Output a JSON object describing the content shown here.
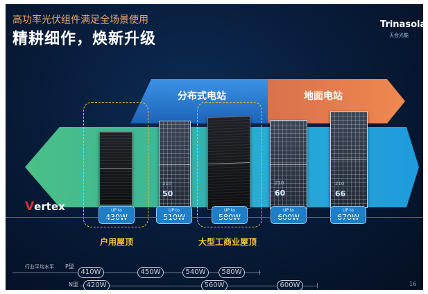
{
  "header": {
    "subtitle": "高功率光伏组件满足全场景使用",
    "title": "精耕细作，焕新升级"
  },
  "brand": {
    "name": "Trinasolar",
    "sub": "天合光能"
  },
  "categories": {
    "distributed": "分布式电站",
    "ground": "地面电站"
  },
  "product_line": {
    "prefix": "V",
    "rest": "ertex"
  },
  "modules": [
    {
      "code": "",
      "cells": "",
      "upto": "UP to",
      "power": "430W"
    },
    {
      "code": "210",
      "cells": "50",
      "upto": "UP to",
      "power": "510W"
    },
    {
      "code": "",
      "cells": "",
      "upto": "UP to",
      "power": "580W"
    },
    {
      "code": "210",
      "cells": "60",
      "upto": "UP to",
      "power": "600W"
    },
    {
      "code": "210",
      "cells": "66",
      "upto": "UP to",
      "power": "670W"
    }
  ],
  "applications": {
    "residential": "户用屋顶",
    "commercial": "大型工商业屋顶"
  },
  "timeline": {
    "label": "行业平均水平",
    "p_type": {
      "label": "P型",
      "values": [
        "410W",
        "450W",
        "540W",
        "580W"
      ]
    },
    "n_type": {
      "label": "N型",
      "values": [
        "420W",
        "560W",
        "600W"
      ]
    }
  },
  "page_number": "16",
  "colors": {
    "background": "#071a36",
    "blue_band": "#2e7fd0",
    "orange_band": "#e5794a",
    "green_band": "#4fc88b",
    "cyan_band": "#25b7e8",
    "badge": "#1e7ec8",
    "highlight": "#f2c230",
    "subtitle": "#f0a868"
  }
}
